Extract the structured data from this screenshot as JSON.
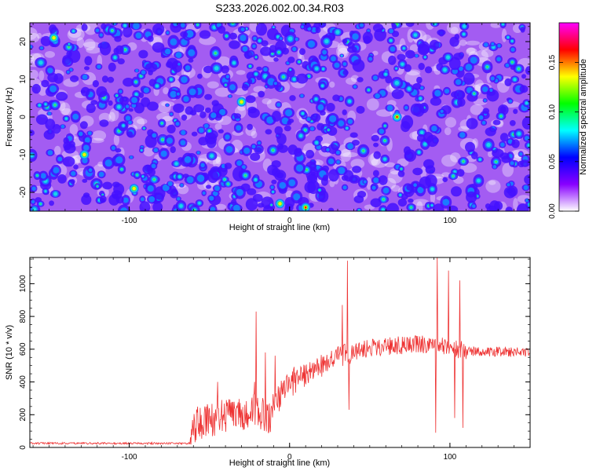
{
  "title": "S233.2026.002.00.34.R03",
  "chart_data": [
    {
      "type": "heatmap",
      "xlabel": "Height of straight line (km)",
      "ylabel": "Frequency (Hz)",
      "xlim": [
        -162,
        150
      ],
      "ylim": [
        -25,
        25
      ],
      "xticks": [
        "-100",
        "0",
        "100"
      ],
      "xtick_values": [
        -100,
        0,
        100
      ],
      "yticks": [
        "-20",
        "-10",
        "0",
        "10",
        "20"
      ],
      "ytick_values": [
        -20,
        -10,
        0,
        10,
        20
      ],
      "colorbar": {
        "label": "Normalized spectral amplitude",
        "range": [
          0,
          0.19
        ],
        "ticks": [
          "0.00",
          "0.05",
          "0.10",
          "0.15"
        ],
        "tick_values": [
          0,
          0.05,
          0.1,
          0.15
        ],
        "colors": [
          "#ffffff",
          "#8800ff",
          "#0000ff",
          "#00ffff",
          "#00ff00",
          "#ffff00",
          "#ff0000",
          "#ff00ff"
        ]
      },
      "peaks": [
        {
          "x": 67,
          "y": 0,
          "value": 0.17
        },
        {
          "x": 10,
          "y": -24,
          "value": 0.17
        },
        {
          "x": -6,
          "y": -23,
          "value": 0.15
        },
        {
          "x": -30,
          "y": 4,
          "value": 0.13
        },
        {
          "x": -147,
          "y": 21,
          "value": 0.12
        },
        {
          "x": -97,
          "y": -19,
          "value": 0.12
        },
        {
          "x": -128,
          "y": -10,
          "value": 0.12
        }
      ]
    },
    {
      "type": "line",
      "xlabel": "Height of straight line (km)",
      "ylabel": "SNR (10 * v/v)",
      "xlim": [
        -162,
        150
      ],
      "ylim": [
        0,
        1160
      ],
      "xticks": [
        "-100",
        "0",
        "100"
      ],
      "xtick_values": [
        -100,
        0,
        100
      ],
      "yticks": [
        "0",
        "200",
        "400",
        "600",
        "800",
        "1000"
      ],
      "ytick_values": [
        0,
        200,
        400,
        600,
        800,
        1000
      ],
      "color": "#ee3333",
      "baseline": [
        {
          "x": -162,
          "y": 25
        },
        {
          "x": -62,
          "y": 25
        },
        {
          "x": -60,
          "y": 130
        },
        {
          "x": -40,
          "y": 200
        },
        {
          "x": -20,
          "y": 230
        },
        {
          "x": -12,
          "y": 180
        },
        {
          "x": -5,
          "y": 330
        },
        {
          "x": 5,
          "y": 430
        },
        {
          "x": 20,
          "y": 500
        },
        {
          "x": 35,
          "y": 570
        },
        {
          "x": 50,
          "y": 610
        },
        {
          "x": 70,
          "y": 625
        },
        {
          "x": 90,
          "y": 630
        },
        {
          "x": 110,
          "y": 590
        },
        {
          "x": 150,
          "y": 580
        }
      ],
      "spikes": [
        {
          "x": -21,
          "y": 830
        },
        {
          "x": -22,
          "y": 400
        },
        {
          "x": -45,
          "y": 400
        },
        {
          "x": -15,
          "y": 580
        },
        {
          "x": -9,
          "y": 560
        },
        {
          "x": 36,
          "y": 1140
        },
        {
          "x": 37,
          "y": 230
        },
        {
          "x": 33,
          "y": 870
        },
        {
          "x": 92,
          "y": 1170
        },
        {
          "x": 91,
          "y": 90
        },
        {
          "x": 99,
          "y": 1080
        },
        {
          "x": 106,
          "y": 1020
        },
        {
          "x": 108,
          "y": 120
        },
        {
          "x": 103,
          "y": 180
        }
      ]
    }
  ]
}
